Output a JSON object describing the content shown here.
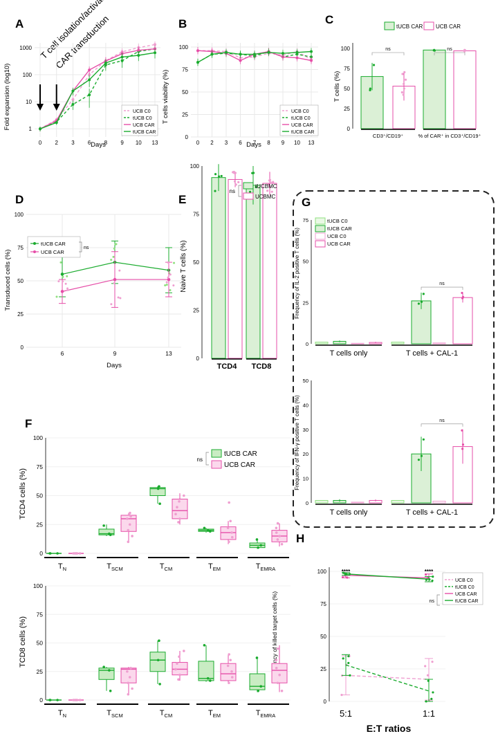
{
  "colors": {
    "tucb": "#1aab2e",
    "ucb": "#e64ea8",
    "ucb_light": "#ef9ed0",
    "tucb_light": "#8fe07f",
    "tucb_fill": "#dbf0d6",
    "ucb_fill": "#ffffff",
    "grid": "#e8e8e8",
    "axis": "#000000",
    "dark": "#111111"
  },
  "chart_data": [
    {
      "id": "A",
      "type": "line",
      "letter": "A",
      "ylabel": "Fold expansion (log10)",
      "xlabel": "Days",
      "x": [
        0,
        2,
        3,
        6,
        8,
        9,
        10,
        13
      ],
      "xticks": [
        "0",
        "2",
        "3",
        "6",
        "8",
        "9",
        "10",
        "13"
      ],
      "yticks": [
        {
          "v": 1,
          "label": "1"
        },
        {
          "v": 10,
          "label": "10"
        },
        {
          "v": 100,
          "label": "100"
        },
        {
          "v": 1000,
          "label": "1000"
        }
      ],
      "ylim": [
        0.5,
        1500
      ],
      "annotations": [
        "T cell isolation/activation",
        "CAR transduction"
      ],
      "series": [
        {
          "name": "UCB C0",
          "color": "ucb_light",
          "dash": true,
          "values": [
            1,
            2.2,
            12,
            100,
            330,
            700,
            1000,
            1300
          ],
          "err": [
            0.2,
            0.4,
            4,
            40,
            120,
            250,
            350,
            400
          ]
        },
        {
          "name": "tUCB C0",
          "color": "tucb",
          "dash": true,
          "values": [
            1,
            1.8,
            8,
            18,
            230,
            330,
            720,
            900
          ],
          "err": [
            0.2,
            0.3,
            3,
            12,
            90,
            150,
            280,
            300
          ]
        },
        {
          "name": "UCB CAR",
          "color": "ucb",
          "dash": false,
          "values": [
            1,
            2,
            25,
            150,
            320,
            600,
            800,
            900
          ],
          "err": [
            0.2,
            0.3,
            8,
            50,
            120,
            200,
            300,
            300
          ]
        },
        {
          "name": "tUCB CAR",
          "color": "tucb",
          "dash": false,
          "values": [
            1,
            1.7,
            25,
            65,
            270,
            450,
            520,
            650
          ],
          "err": [
            0.2,
            0.3,
            8,
            30,
            100,
            180,
            200,
            250
          ]
        }
      ]
    },
    {
      "id": "B",
      "type": "line",
      "letter": "B",
      "ylabel": "T cells viability (%)",
      "xlabel": "Days",
      "x": [
        0,
        2,
        3,
        6,
        7,
        8,
        9,
        10,
        13
      ],
      "xticks": [
        "0",
        "2",
        "3",
        "6",
        "7",
        "8",
        "9",
        "10",
        "13"
      ],
      "yticks": [
        "0",
        "25",
        "50",
        "75",
        "100"
      ],
      "ylim": [
        0,
        100
      ],
      "series": [
        {
          "name": "UCB C0",
          "color": "ucb_light",
          "dash": true,
          "values": [
            96,
            96,
            95,
            88,
            89,
            93,
            91,
            95,
            86
          ]
        },
        {
          "name": "tUCB C0",
          "color": "tucb",
          "dash": true,
          "values": [
            83,
            92,
            93,
            92,
            90,
            95,
            89,
            92,
            89
          ]
        },
        {
          "name": "UCB CAR",
          "color": "ucb",
          "dash": false,
          "values": [
            96,
            95,
            93,
            85,
            92,
            95,
            89,
            88,
            85
          ]
        },
        {
          "name": "tUCB CAR",
          "color": "tucb",
          "dash": false,
          "values": [
            83,
            92,
            94,
            92,
            92,
            94,
            93,
            94,
            95
          ]
        }
      ]
    },
    {
      "id": "C",
      "type": "bar",
      "letter": "C",
      "ylabel": "T cells (%)",
      "legend": [
        "tUCB CAR",
        "UCB CAR"
      ],
      "groups": [
        "CD3⁺/CD19⁺",
        "% of CAR⁺ in CD3⁺/CD19⁺"
      ],
      "series": [
        {
          "name": "tUCB CAR",
          "values": [
            65,
            98
          ],
          "err": [
            17,
            1
          ]
        },
        {
          "name": "UCB CAR",
          "values": [
            53,
            97
          ],
          "err": [
            18,
            2
          ]
        }
      ],
      "yticks": [
        "0",
        "25",
        "50",
        "75",
        "100"
      ],
      "ylim": [
        0,
        100
      ],
      "sig": [
        "ns",
        "ns"
      ]
    },
    {
      "id": "D",
      "type": "line",
      "letter": "D",
      "ylabel": "Transduced cells (%)",
      "xlabel": "Days",
      "x": [
        6,
        9,
        13
      ],
      "xticks": [
        "6",
        "9",
        "13"
      ],
      "yticks": [
        "0",
        "25",
        "50",
        "75",
        "100"
      ],
      "ylim": [
        0,
        100
      ],
      "sig": "ns",
      "series": [
        {
          "name": "tUCB CAR",
          "color": "tucb",
          "values": [
            55,
            64,
            58
          ],
          "err": [
            17,
            16,
            17
          ]
        },
        {
          "name": "UCB CAR",
          "color": "ucb",
          "values": [
            42,
            51,
            51
          ],
          "err": [
            9,
            21,
            13
          ]
        }
      ]
    },
    {
      "id": "E",
      "type": "bar",
      "letter": "E",
      "ylabel": "Naive T cells (%)",
      "legend": [
        "tUCBMC",
        "UCBMC"
      ],
      "groups": [
        "TCD4",
        "TCD8"
      ],
      "series": [
        {
          "name": "tUCBMC",
          "values": [
            94,
            90
          ],
          "err": [
            7,
            10
          ]
        },
        {
          "name": "UCBMC",
          "values": [
            93,
            91
          ],
          "err": [
            4,
            6
          ]
        }
      ],
      "yticks": [
        "0",
        "25",
        "50",
        "75",
        "100"
      ],
      "ylim": [
        0,
        100
      ],
      "sig": "ns"
    },
    {
      "id": "G1",
      "type": "bar",
      "letter": "G",
      "ylabel": "Frequency of IL-2 positive T cells (%)",
      "legend": [
        "tUCB C0",
        "tUCB CAR",
        "UCB C0",
        "UCB CAR"
      ],
      "groups": [
        "T cells only",
        "T cells + CAL-1"
      ],
      "series": [
        {
          "name": "tUCB C0",
          "values": [
            1,
            1
          ]
        },
        {
          "name": "tUCB CAR",
          "values": [
            1.5,
            26
          ],
          "err": [
            0.5,
            5
          ]
        },
        {
          "name": "UCB C0",
          "values": [
            0.3,
            0.5
          ]
        },
        {
          "name": "UCB CAR",
          "values": [
            0.8,
            28
          ],
          "err": [
            0.4,
            3
          ]
        }
      ],
      "yticks": [
        "0",
        "25",
        "50",
        "75"
      ],
      "ylim": [
        0,
        75
      ],
      "sig": "ns"
    },
    {
      "id": "G2",
      "type": "bar",
      "ylabel": "Frequency of IFN-γ positive T cells (%)",
      "groups": [
        "T cells only",
        "T cells + CAL-1"
      ],
      "series": [
        {
          "name": "tUCB C0",
          "values": [
            1,
            1
          ]
        },
        {
          "name": "tUCB CAR",
          "values": [
            1,
            20
          ],
          "err": [
            0.5,
            7
          ]
        },
        {
          "name": "UCB C0",
          "values": [
            0.3,
            0.7
          ]
        },
        {
          "name": "UCB CAR",
          "values": [
            1,
            23
          ],
          "err": [
            0.4,
            7
          ]
        }
      ],
      "yticks": [
        "0",
        "10",
        "20",
        "30",
        "40",
        "50"
      ],
      "ylim": [
        0,
        50
      ],
      "sig": "ns"
    },
    {
      "id": "F1",
      "type": "box",
      "letter": "F",
      "ylabel": "TCD4 cells (%)",
      "legend": [
        "tUCB CAR",
        "UCB CAR"
      ],
      "sig": "ns",
      "categories": [
        "N",
        "SCM",
        "CM",
        "EM",
        "EMRA"
      ],
      "yticks": [
        "0",
        "25",
        "50",
        "75",
        "100"
      ],
      "ylim": [
        0,
        100
      ],
      "boxes": [
        {
          "q": [
            0,
            0,
            0,
            0,
            0
          ],
          "pts": [
            0,
            0,
            0
          ]
        },
        {
          "q": [
            0,
            0,
            0,
            0,
            0
          ],
          "pts": [
            0,
            0,
            0,
            0,
            0,
            0
          ]
        },
        {
          "q": [
            15,
            16,
            17,
            21,
            25
          ],
          "pts": [
            16,
            17,
            24
          ]
        },
        {
          "q": [
            10,
            19,
            30,
            33,
            35
          ],
          "pts": [
            10,
            15,
            20,
            25,
            30,
            32,
            34,
            35
          ]
        },
        {
          "q": [
            43,
            50,
            56,
            57,
            58
          ],
          "pts": [
            43,
            56,
            58
          ]
        },
        {
          "q": [
            25,
            30,
            37,
            47,
            52
          ],
          "pts": [
            27,
            30,
            34,
            40,
            45,
            50
          ]
        },
        {
          "q": [
            18,
            19,
            20,
            21,
            22
          ],
          "pts": [
            19,
            20,
            22
          ]
        },
        {
          "q": [
            8,
            12,
            18,
            23,
            28
          ],
          "pts": [
            10,
            14,
            18,
            22,
            28,
            44
          ]
        },
        {
          "q": [
            4,
            5,
            7,
            9,
            13
          ],
          "pts": [
            5,
            7,
            12
          ]
        },
        {
          "q": [
            6,
            10,
            15,
            20,
            26
          ],
          "pts": [
            8,
            12,
            15,
            18,
            22,
            26
          ]
        }
      ]
    },
    {
      "id": "F2",
      "type": "box",
      "ylabel": "TCD8 cells (%)",
      "categories": [
        "N",
        "SCM",
        "CM",
        "EM",
        "EMRA"
      ],
      "yticks": [
        "0",
        "25",
        "50",
        "75",
        "100"
      ],
      "ylim": [
        0,
        100
      ],
      "boxes": [
        {
          "q": [
            0,
            0,
            0,
            0,
            0
          ],
          "pts": [
            0,
            0,
            0
          ]
        },
        {
          "q": [
            0,
            0,
            0,
            0,
            0
          ],
          "pts": [
            0,
            0,
            0,
            0,
            0,
            0
          ]
        },
        {
          "q": [
            8,
            18,
            26,
            28,
            29
          ],
          "pts": [
            8,
            26,
            29
          ]
        },
        {
          "q": [
            5,
            15,
            27,
            28,
            29
          ],
          "pts": [
            5,
            10,
            15,
            20,
            25,
            28
          ]
        },
        {
          "q": [
            14,
            25,
            35,
            42,
            52
          ],
          "pts": [
            14,
            35,
            52
          ]
        },
        {
          "q": [
            17,
            22,
            27,
            33,
            43
          ],
          "pts": [
            18,
            22,
            27,
            32,
            38,
            43
          ]
        },
        {
          "q": [
            16,
            17,
            19,
            34,
            48
          ],
          "pts": [
            17,
            19,
            48
          ]
        },
        {
          "q": [
            15,
            17,
            23,
            32,
            40
          ],
          "pts": [
            15,
            20,
            25,
            30,
            35,
            40
          ]
        },
        {
          "q": [
            7,
            9,
            12,
            23,
            37
          ],
          "pts": [
            8,
            12,
            37
          ]
        },
        {
          "q": [
            7,
            15,
            26,
            32,
            48
          ],
          "pts": [
            8,
            15,
            22,
            28,
            35,
            45
          ]
        }
      ]
    },
    {
      "id": "H",
      "type": "line",
      "letter": "H",
      "ylabel": "Frequency of killed target cells (%)",
      "xlabel": "E:T ratios",
      "x": [
        "5:1",
        "1:1"
      ],
      "yticks": [
        "0",
        "25",
        "50",
        "75",
        "100"
      ],
      "ylim": [
        0,
        100
      ],
      "sig": [
        "****",
        "****",
        "ns"
      ],
      "series": [
        {
          "name": "UCB C0",
          "color": "ucb_light",
          "dash": true,
          "values": [
            20,
            17
          ],
          "err": [
            15,
            16
          ]
        },
        {
          "name": "tUCB C0",
          "color": "tucb",
          "dash": true,
          "values": [
            28,
            8
          ],
          "err": [
            8,
            9
          ]
        },
        {
          "name": "UCB CAR",
          "color": "ucb",
          "dash": false,
          "values": [
            97,
            95
          ],
          "err": [
            2,
            3
          ]
        },
        {
          "name": "tUCB CAR",
          "color": "tucb",
          "dash": false,
          "values": [
            98,
            94
          ],
          "err": [
            1,
            2
          ]
        }
      ]
    }
  ]
}
